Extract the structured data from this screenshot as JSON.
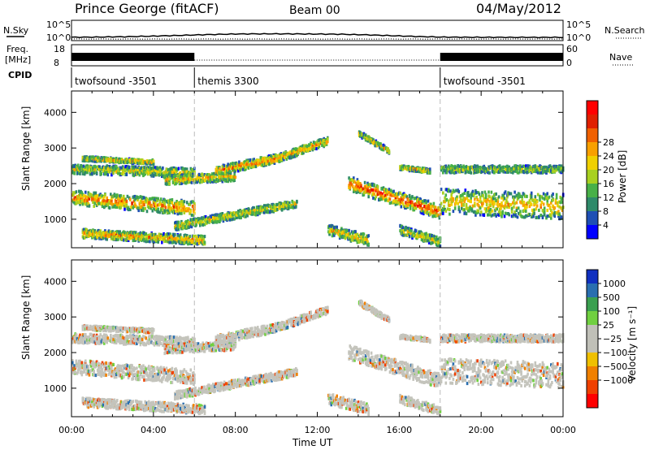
{
  "header": {
    "station": "Prince George (fitACF)",
    "beam": "Beam 00",
    "date": "04/May/2012"
  },
  "top_panels": {
    "nsky_label": "N.Sky",
    "nsky_ticks": [
      "10^5",
      "10^0"
    ],
    "nsearch_label": "N.Search",
    "nsearch_ticks": [
      "10^5",
      "10^0"
    ],
    "freq_label_1": "Freq.",
    "freq_label_2": "[MHz]",
    "freq_ticks": [
      "18",
      "8"
    ],
    "nave_label": "Nave",
    "nave_ticks": [
      "60",
      "0"
    ],
    "cpid_label": "CPID",
    "cpid_segments": [
      {
        "label": "twofsound -3501",
        "start_hour": 0,
        "end_hour": 6
      },
      {
        "label": "themis 3300",
        "start_hour": 6,
        "end_hour": 18
      },
      {
        "label": "twofsound -3501",
        "start_hour": 18,
        "end_hour": 24
      }
    ]
  },
  "chart_data": [
    {
      "type": "heatmap",
      "panel": "power",
      "ylabel": "Slant Range [km]",
      "yticks": [
        "1000",
        "2000",
        "3000",
        "4000"
      ],
      "ylim": [
        200,
        4600
      ],
      "xlim": [
        0,
        24
      ],
      "colorbar_label": "Power [dB]",
      "colorbar_ticks": [
        "4",
        "8",
        "12",
        "16",
        "20",
        "24",
        "28"
      ],
      "colorbar_colors": [
        "#0000ff",
        "#1e4fb4",
        "#2f8a6a",
        "#48b048",
        "#a8d020",
        "#f0d000",
        "#f8a000",
        "#f06000",
        "#e02000",
        "#ff0000"
      ],
      "echo_bands": [
        {
          "t_start": 0.0,
          "t_end": 6.0,
          "range_start": 1600,
          "range_end": 1300,
          "width": 400,
          "intensity": 0.6
        },
        {
          "t_start": 0.0,
          "t_end": 6.0,
          "range_start": 2400,
          "range_end": 2300,
          "width": 250,
          "intensity": 0.35
        },
        {
          "t_start": 0.5,
          "t_end": 4.0,
          "range_start": 2700,
          "range_end": 2600,
          "width": 120,
          "intensity": 0.45
        },
        {
          "t_start": 0.5,
          "t_end": 6.5,
          "range_start": 600,
          "range_end": 400,
          "width": 250,
          "intensity": 0.55
        },
        {
          "t_start": 4.5,
          "t_end": 8.0,
          "range_start": 2100,
          "range_end": 2200,
          "width": 250,
          "intensity": 0.5
        },
        {
          "t_start": 7.0,
          "t_end": 10.0,
          "range_start": 2350,
          "range_end": 2700,
          "width": 250,
          "intensity": 0.6
        },
        {
          "t_start": 10.0,
          "t_end": 12.5,
          "range_start": 2700,
          "range_end": 3200,
          "width": 220,
          "intensity": 0.6
        },
        {
          "t_start": 5.0,
          "t_end": 11.0,
          "range_start": 800,
          "range_end": 1450,
          "width": 220,
          "intensity": 0.4
        },
        {
          "t_start": 13.5,
          "t_end": 18.0,
          "range_start": 2000,
          "range_end": 1200,
          "width": 400,
          "intensity": 0.75
        },
        {
          "t_start": 14.0,
          "t_end": 15.5,
          "range_start": 3400,
          "range_end": 2900,
          "width": 150,
          "intensity": 0.45
        },
        {
          "t_start": 16.0,
          "t_end": 17.5,
          "range_start": 2450,
          "range_end": 2350,
          "width": 120,
          "intensity": 0.4
        },
        {
          "t_start": 18.0,
          "t_end": 24.0,
          "range_start": 1500,
          "range_end": 1350,
          "width": 700,
          "intensity": 0.45
        },
        {
          "t_start": 18.0,
          "t_end": 24.0,
          "range_start": 2400,
          "range_end": 2400,
          "width": 200,
          "intensity": 0.25
        },
        {
          "t_start": 12.5,
          "t_end": 14.5,
          "range_start": 700,
          "range_end": 400,
          "width": 300,
          "intensity": 0.45
        },
        {
          "t_start": 16.0,
          "t_end": 18.0,
          "range_start": 700,
          "range_end": 350,
          "width": 250,
          "intensity": 0.4
        }
      ]
    },
    {
      "type": "heatmap",
      "panel": "velocity",
      "ylabel": "Slant Range [km]",
      "yticks": [
        "1000",
        "2000",
        "3000",
        "4000"
      ],
      "ylim": [
        200,
        4600
      ],
      "xlim": [
        0,
        24
      ],
      "xlabel": "Time UT",
      "xticks": [
        "00:00",
        "04:00",
        "08:00",
        "12:00",
        "16:00",
        "20:00",
        "00:00"
      ],
      "colorbar_label": "Velocity [m s⁻¹]",
      "colorbar_ticks": [
        "1000",
        "500",
        "100",
        "25",
        "−25",
        "−100",
        "−500",
        "−1000"
      ],
      "colorbar_colors": [
        "#1030c0",
        "#2a6fb0",
        "#3aa050",
        "#70d040",
        "#c0c0b8",
        "#c0c0b8",
        "#f0c000",
        "#f08000",
        "#f04000",
        "#ff0000"
      ]
    }
  ]
}
